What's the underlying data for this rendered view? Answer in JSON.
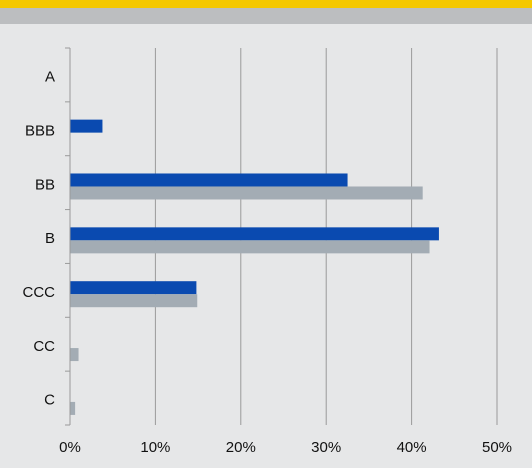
{
  "chart_data": {
    "type": "bar",
    "orientation": "horizontal",
    "title": "",
    "categories": [
      "A",
      "BBB",
      "BB",
      "B",
      "CCC",
      "CC",
      "C"
    ],
    "series": [
      {
        "color": "#0a4ab0",
        "values": [
          0,
          3.8,
          32.5,
          43.2,
          14.8,
          0,
          0
        ]
      },
      {
        "color": "#a3acb4",
        "values": [
          0,
          0,
          41.3,
          42.1,
          14.9,
          1.0,
          0.6
        ]
      }
    ],
    "xlim": [
      0,
      50
    ],
    "x_ticks": [
      "0%",
      "10%",
      "20%",
      "30%",
      "40%",
      "50%"
    ],
    "grid": "vertical"
  },
  "colors": {
    "background": "#e6e7e8",
    "header_accent": "#f5c800",
    "header_band": "#bcbec0",
    "gridline": "#9a9a9a"
  }
}
